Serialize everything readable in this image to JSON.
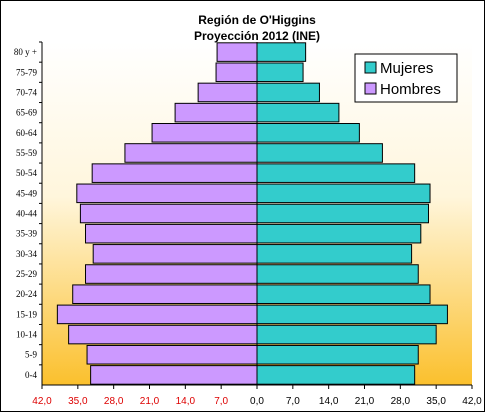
{
  "chart_data": {
    "type": "bar",
    "orientation": "horizontal-population-pyramid",
    "title": "Región de O'Higgins",
    "subtitle": "Proyección 2012 (INE)",
    "categories": [
      "0-4",
      "5-9",
      "10-14",
      "15-19",
      "20-24",
      "25-29",
      "30-34",
      "35-39",
      "40-44",
      "45-49",
      "50-54",
      "55-59",
      "60-64",
      "65-69",
      "70-74",
      "75-79",
      "80 y +"
    ],
    "series": [
      {
        "name": "Mujeres",
        "color": "#33cccc",
        "values": [
          30.8,
          31.5,
          35.0,
          37.2,
          33.8,
          31.5,
          30.2,
          32.0,
          33.5,
          33.8,
          30.8,
          24.5,
          20.0,
          16.0,
          12.2,
          9.0,
          9.5
        ]
      },
      {
        "name": "Hombres",
        "color": "#cc99ff",
        "values": [
          32.5,
          33.2,
          36.8,
          39.0,
          36.0,
          33.5,
          32.0,
          33.5,
          34.5,
          35.2,
          32.2,
          25.8,
          20.5,
          16.0,
          11.5,
          8.0,
          7.8
        ]
      }
    ],
    "xlim": [
      -42,
      42
    ],
    "xticks": [
      "42,0",
      "35,0",
      "28,0",
      "21,0",
      "14,0",
      "7,0",
      "0,0",
      "7,0",
      "14,0",
      "21,0",
      "28,0",
      "35,0",
      "42,0"
    ],
    "xlabel": "",
    "ylabel": "",
    "legend_position": "top-right",
    "grid": false,
    "background_gradient": [
      "#ffffff",
      "#fbc02d"
    ]
  }
}
